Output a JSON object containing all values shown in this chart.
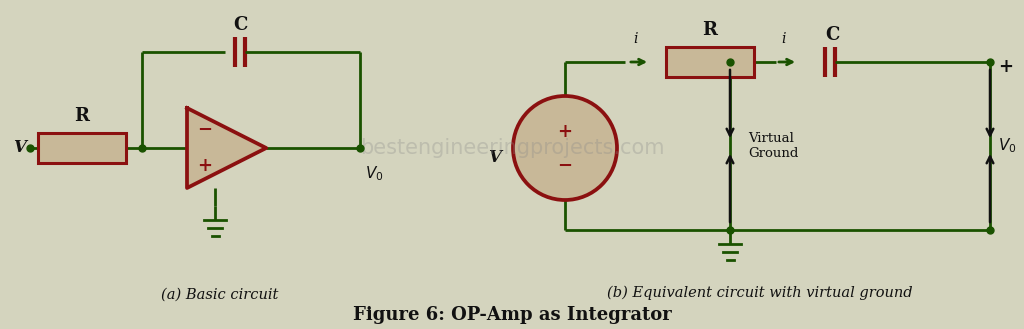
{
  "bg_color": "#d4d4be",
  "gc": "#1a5200",
  "cc": "#8b1010",
  "cf": "#c8b898",
  "tc": "#111111",
  "title": "Figure 6: OP-Amp as Integrator",
  "label_a": "(a) Basic circuit",
  "label_b": "(b) Equivalent circuit with virtual ground",
  "watermark": "bestengineeringprojects.com",
  "title_fontsize": 13,
  "label_fontsize": 10.5
}
